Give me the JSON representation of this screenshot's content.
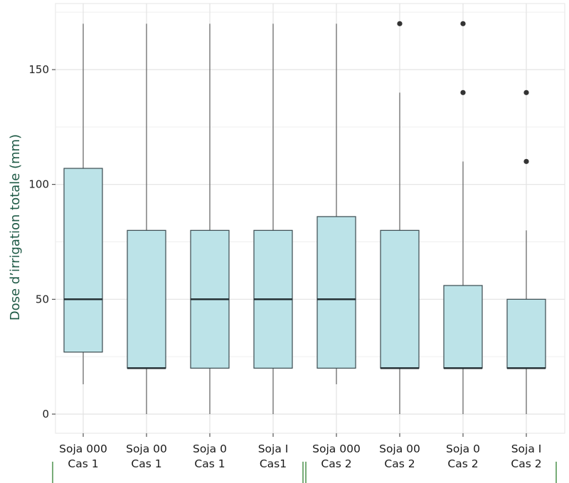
{
  "chart_data": {
    "type": "boxplot",
    "title": "",
    "xlabel": "",
    "ylabel": "Dose d’irrigation totale (mm)",
    "ylim": [
      -8,
      175
    ],
    "yticks": [
      0,
      50,
      100,
      150
    ],
    "grid": true,
    "legend": "none",
    "colors": {
      "box_fill": "#bce3e8",
      "box_stroke": "#3a4a4f",
      "whisker": "#555555",
      "outlier": "#333333",
      "grid_major": "#e3e3e3",
      "grid_minor": "#efefef",
      "axis_title": "#1f5a46",
      "bracket": "#3f8a3f"
    },
    "categories": [
      {
        "lines": [
          "Soja 000",
          "Cas 1"
        ]
      },
      {
        "lines": [
          "Soja 00",
          "Cas 1"
        ]
      },
      {
        "lines": [
          "Soja 0",
          "Cas 1"
        ]
      },
      {
        "lines": [
          "Soja I",
          "Cas1"
        ]
      },
      {
        "lines": [
          "Soja 000",
          "Cas 2"
        ]
      },
      {
        "lines": [
          "Soja 00",
          "Cas 2"
        ]
      },
      {
        "lines": [
          "Soja 0",
          "Cas 2"
        ]
      },
      {
        "lines": [
          "Soja I",
          "Cas 2"
        ]
      }
    ],
    "boxes": [
      {
        "min": 13,
        "q1": 27,
        "median": 50,
        "q3": 107,
        "max": 170,
        "outliers": []
      },
      {
        "min": 0,
        "q1": 20,
        "median": 20,
        "q3": 80,
        "max": 170,
        "outliers": []
      },
      {
        "min": 0,
        "q1": 20,
        "median": 50,
        "q3": 80,
        "max": 170,
        "outliers": []
      },
      {
        "min": 0,
        "q1": 20,
        "median": 50,
        "q3": 80,
        "max": 170,
        "outliers": []
      },
      {
        "min": 13,
        "q1": 20,
        "median": 50,
        "q3": 86,
        "max": 170,
        "outliers": []
      },
      {
        "min": 0,
        "q1": 20,
        "median": 20,
        "q3": 80,
        "max": 140,
        "outliers": [
          170
        ]
      },
      {
        "min": 0,
        "q1": 20,
        "median": 20,
        "q3": 56,
        "max": 110,
        "outliers": [
          140,
          170
        ]
      },
      {
        "min": 0,
        "q1": 20,
        "median": 20,
        "q3": 50,
        "max": 80,
        "outliers": [
          110,
          140
        ]
      }
    ],
    "groups": [
      {
        "from": 0,
        "to": 3
      },
      {
        "from": 4,
        "to": 7
      }
    ]
  }
}
